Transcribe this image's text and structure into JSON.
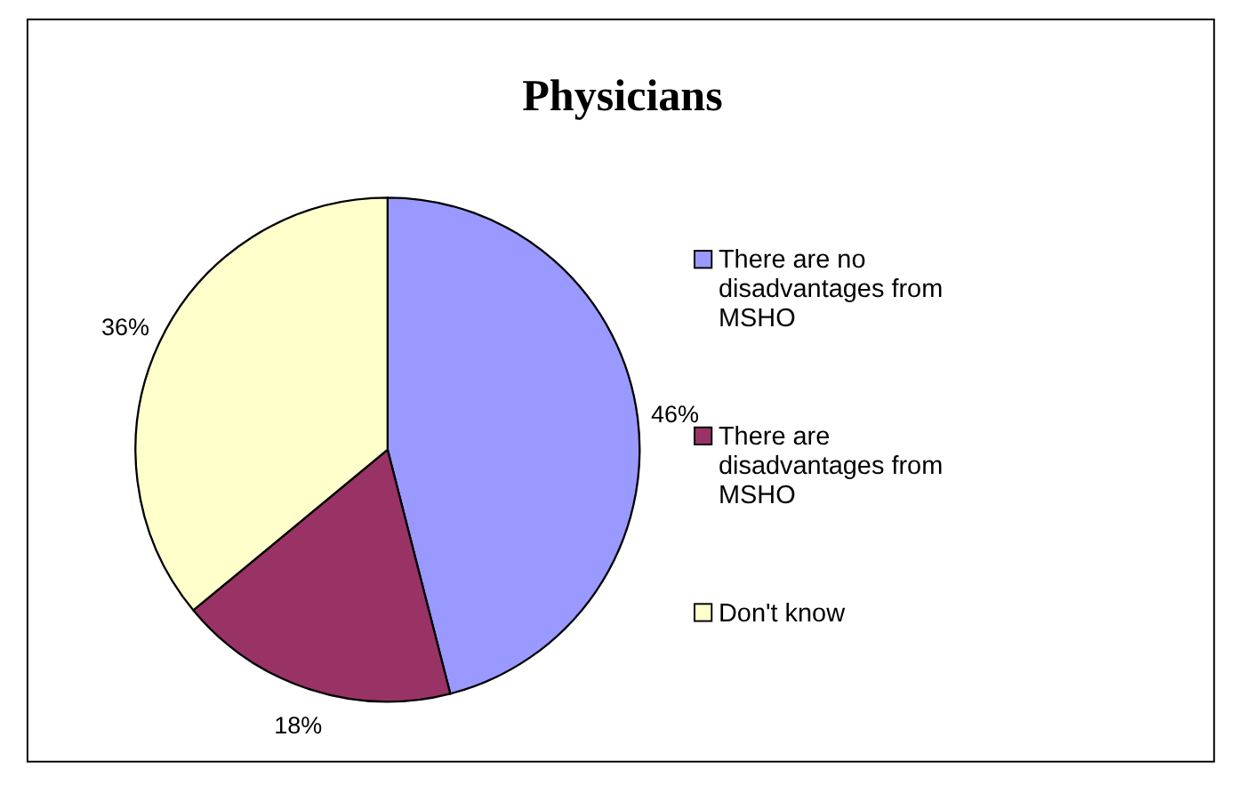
{
  "chart_data": {
    "type": "pie",
    "title": "Physicians",
    "categories": [
      "There are no disadvantages from MSHO",
      "There are disadvantages from MSHO",
      "Don't know"
    ],
    "values": [
      46,
      18,
      36
    ],
    "colors": [
      "#9999ff",
      "#993366",
      "#ffffcc"
    ],
    "value_labels": [
      "46%",
      "18%",
      "36%"
    ],
    "legend": "right"
  }
}
